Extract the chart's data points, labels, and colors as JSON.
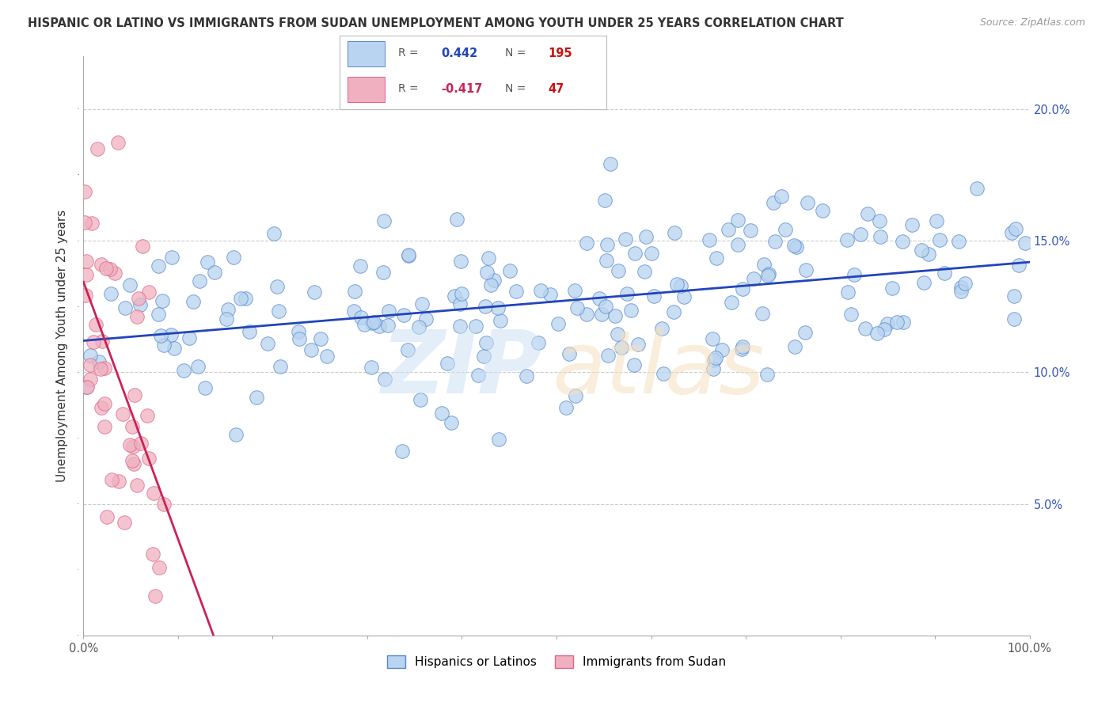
{
  "title": "HISPANIC OR LATINO VS IMMIGRANTS FROM SUDAN UNEMPLOYMENT AMONG YOUTH UNDER 25 YEARS CORRELATION CHART",
  "source": "Source: ZipAtlas.com",
  "ylabel": "Unemployment Among Youth under 25 years",
  "R_blue": 0.442,
  "N_blue": 195,
  "R_pink": -0.417,
  "N_pink": 47,
  "xlim": [
    0,
    100
  ],
  "ylim": [
    0,
    22
  ],
  "blue_color": "#b8d4f0",
  "blue_edge": "#5588cc",
  "pink_color": "#f0b0c0",
  "pink_edge": "#dd6688",
  "blue_line_color": "#2244bb",
  "pink_line_color": "#cc2255",
  "watermark_zip": "ZIP",
  "watermark_atlas": "atlas",
  "background_color": "#ffffff",
  "grid_color": "#cccccc",
  "legend_label_blue": "Hispanics or Latinos",
  "legend_label_pink": "Immigrants from Sudan",
  "title_color": "#333333",
  "source_color": "#999999",
  "axis_label_color": "#333333",
  "tick_color": "#555555",
  "right_tick_color": "#3355bb"
}
